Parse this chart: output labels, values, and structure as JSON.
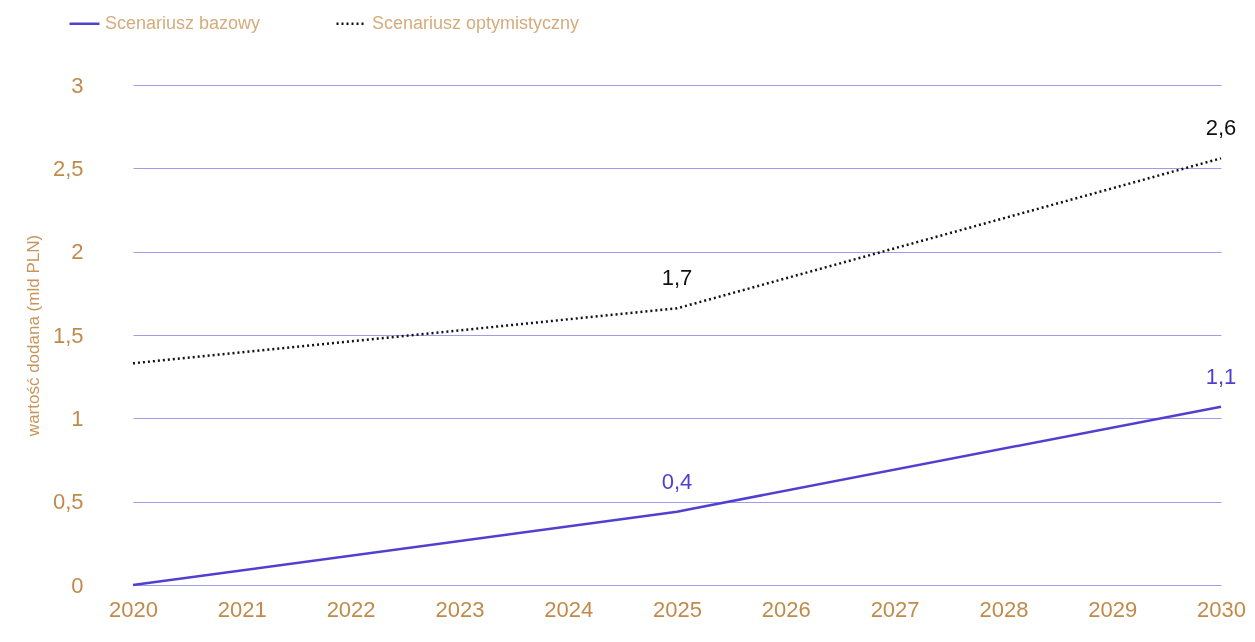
{
  "chart_data": {
    "type": "line",
    "ylabel": "wartość dodana (mld PLN)",
    "x": [
      2020,
      2025,
      2030
    ],
    "xlim": [
      2020,
      2030
    ],
    "xticks": [
      2020,
      2021,
      2022,
      2023,
      2024,
      2025,
      2026,
      2027,
      2028,
      2029,
      2030
    ],
    "ylim": [
      0,
      3
    ],
    "yticks": [
      0,
      {
        "value": 0.5,
        "label": "0,5"
      },
      1,
      {
        "value": 1.5,
        "label": "1,5"
      },
      2,
      {
        "value": 2.5,
        "label": "2,5"
      },
      3
    ],
    "grid": "y",
    "legend": "top left",
    "series": [
      {
        "name": "Scenariusz bazowy",
        "color": "#5140d0",
        "line_style": "solid",
        "values": [
          0.0,
          0.44,
          1.07
        ],
        "value_labels": [
          null,
          "0,4",
          "1,1"
        ]
      },
      {
        "name": "Scenariusz optymistyczny",
        "color": "#111111",
        "line_style": "dotted",
        "values": [
          1.33,
          1.66,
          2.56
        ],
        "value_labels": [
          null,
          "1,7",
          "2,6"
        ]
      }
    ]
  }
}
